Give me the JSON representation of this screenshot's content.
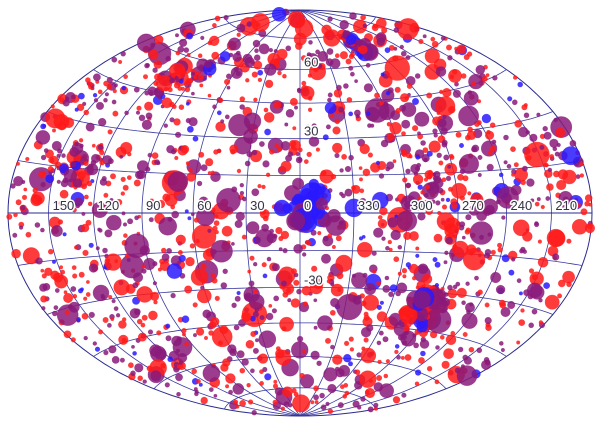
{
  "projection": "hammer-aitoff",
  "coordinate_labels": {
    "longitude": [
      "150",
      "120",
      "90",
      "60",
      "30",
      "0",
      "330",
      "300",
      "270",
      "240",
      "210"
    ],
    "latitude": [
      "60",
      "30",
      "-30"
    ]
  },
  "colors": {
    "grid": "#3a3aa0",
    "low": "#2a1aff",
    "mid": "#8a1a7a",
    "high": "#ff1a1a"
  },
  "clusters": [
    {
      "lon": -5,
      "lat": 3,
      "spread": 10,
      "count": 30,
      "color": "blue"
    },
    {
      "lon": 0,
      "lat": -2,
      "spread": 3,
      "count": 8,
      "color": "blue-big"
    },
    {
      "lon": -75,
      "lat": 70,
      "spread": 10,
      "count": 40,
      "color": "mixed"
    },
    {
      "lon": 90,
      "lat": 55,
      "spread": 8,
      "count": 25,
      "color": "mixed"
    },
    {
      "lon": 110,
      "lat": 50,
      "spread": 10,
      "count": 30,
      "color": "mixed"
    },
    {
      "lon": -85,
      "lat": -35,
      "spread": 12,
      "count": 120,
      "color": "mixed"
    },
    {
      "lon": -80,
      "lat": -33,
      "spread": 4,
      "count": 12,
      "color": "blue"
    },
    {
      "lon": 135,
      "lat": 15,
      "spread": 15,
      "count": 40,
      "color": "mixed"
    },
    {
      "lon": -75,
      "lat": 10,
      "spread": 15,
      "count": 40,
      "color": "mixed"
    }
  ]
}
